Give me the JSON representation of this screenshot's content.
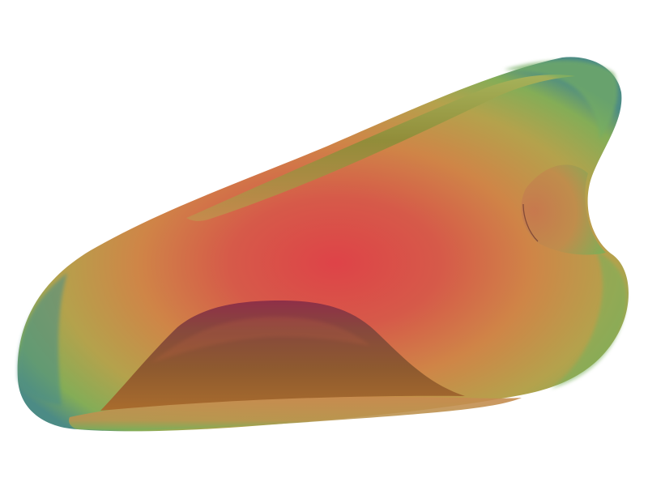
{
  "scene": {
    "background_color": "#ffffff",
    "object": "3d-rendered-surface",
    "colors": {
      "center_red": "#d94a48",
      "mid_orange": "#d07a45",
      "outer_yellow_green": "#a7b04e",
      "edge_green": "#5fae62",
      "edge_teal": "#4d8f88",
      "dome_dark": "#8a2f3d",
      "dome_base": "#9d6a2b",
      "lower_lip": "#c98b4f"
    }
  }
}
